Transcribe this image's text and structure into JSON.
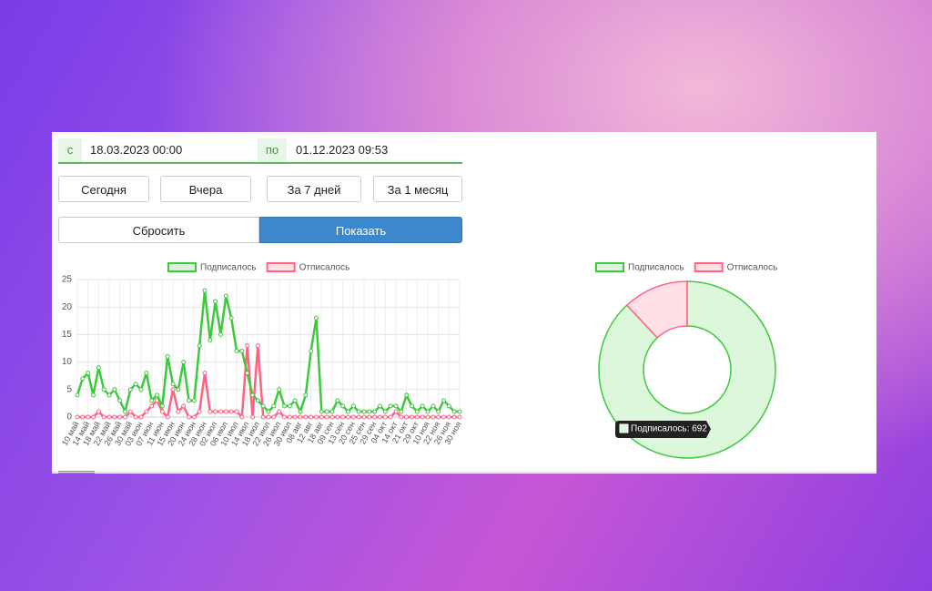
{
  "form": {
    "from_label": "с",
    "from_value": "18.03.2023 00:00",
    "to_label": "по",
    "to_value": "01.12.2023 09:53",
    "quick": [
      "Сегодня",
      "Вчера",
      "За 7 дней",
      "За 1 месяц"
    ],
    "reset": "Сбросить",
    "show": "Показать"
  },
  "chart_data": [
    {
      "type": "line",
      "categories": [
        "10 май",
        null,
        "14 май",
        null,
        "18 май",
        null,
        "22 май",
        null,
        "26 май",
        null,
        "30 май",
        null,
        "03 июн",
        null,
        "07 июн",
        null,
        "11 июн",
        null,
        "15 июн",
        null,
        "20 июн",
        null,
        "24 июн",
        null,
        "28 июн",
        null,
        "02 июл",
        null,
        "06 июл",
        null,
        "10 июл",
        null,
        "14 июл",
        null,
        "18 июл",
        null,
        "22 июл",
        null,
        "26 июл",
        null,
        "30 июл",
        null,
        "08 авг",
        null,
        "12 авг",
        null,
        "18 авг",
        null,
        "09 сен",
        null,
        "13 сен",
        null,
        "20 сен",
        null,
        "25 сен",
        null,
        "29 сен",
        null,
        "04 окт",
        null,
        "14 окт",
        null,
        "21 окт",
        null,
        "29 окт",
        null,
        "10 ноя",
        null,
        "22 ноя",
        null,
        "26 ноя",
        null,
        "30 ноя"
      ],
      "series": [
        {
          "name": "Подписалось",
          "color": "#3dc93d",
          "values": [
            4,
            7,
            8,
            4,
            9,
            5,
            4,
            5,
            3,
            1,
            5,
            6,
            5,
            8,
            3,
            4,
            2,
            11,
            6,
            5,
            10,
            3,
            3,
            13,
            23,
            14,
            21,
            15,
            22,
            18,
            12,
            12,
            8,
            4,
            3,
            2,
            1,
            2,
            5,
            2,
            2,
            3,
            1,
            4,
            12,
            18,
            1,
            1,
            1,
            3,
            2,
            1,
            2,
            1,
            1,
            1,
            1,
            2,
            1,
            2,
            2,
            1,
            4,
            2,
            1,
            2,
            1,
            2,
            1,
            3,
            2,
            1,
            1
          ]
        },
        {
          "name": "Отписалось",
          "color": "#ff6384",
          "values": [
            0,
            0,
            0,
            0,
            1,
            0,
            0,
            0,
            0,
            0,
            1,
            0,
            0,
            1,
            2,
            3,
            1,
            0,
            5,
            1,
            2,
            0,
            0,
            1,
            8,
            1,
            1,
            1,
            1,
            1,
            1,
            0,
            13,
            0,
            13,
            0,
            0,
            0,
            1,
            0,
            0,
            0,
            0,
            0,
            0,
            0,
            0,
            0,
            0,
            0,
            0,
            0,
            0,
            0,
            0,
            0,
            0,
            0,
            0,
            0,
            1,
            0,
            0,
            0,
            0,
            0,
            0,
            0,
            0,
            0,
            0,
            0,
            0
          ]
        }
      ],
      "ylim": [
        0,
        25
      ],
      "yticks": [
        0,
        5,
        10,
        15,
        20,
        25
      ],
      "grid": true,
      "legend": "top"
    },
    {
      "type": "doughnut",
      "categories": [
        "Подписалось",
        "Отписалось"
      ],
      "values": [
        692,
        94
      ],
      "colors": [
        "#dcf7dc",
        "#ffe0e6"
      ],
      "border_colors": [
        "#3dc93d",
        "#ff6384"
      ],
      "legend": "top",
      "tooltip": "Подписалось: 692"
    }
  ]
}
